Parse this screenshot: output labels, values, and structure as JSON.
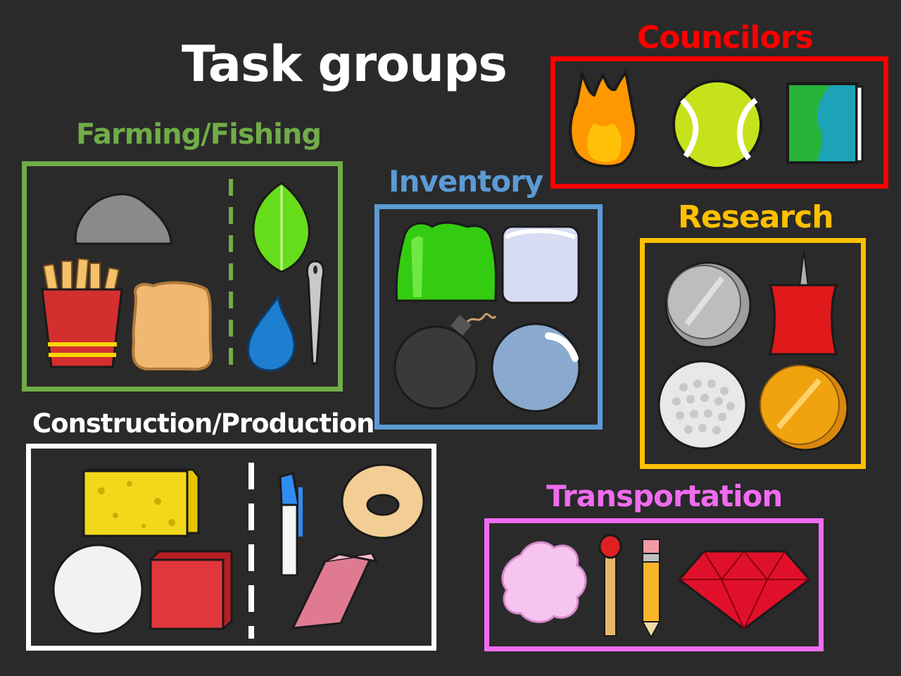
{
  "main_title": "Task groups",
  "groups": {
    "councilors": {
      "label": "Councilors",
      "color": "#ff0000"
    },
    "farming": {
      "label": "Farming/Fishing",
      "color": "#70ad47"
    },
    "inventory": {
      "label": "Inventory",
      "color": "#5b9bd5"
    },
    "research": {
      "label": "Research",
      "color": "#ffc000"
    },
    "construction": {
      "label": "Construction/Production",
      "color": "#ffffff"
    },
    "transportation": {
      "label": "Transportation",
      "color": "#f06cf0"
    }
  },
  "icons": {
    "councilors": [
      "fire-icon",
      "tennis-ball-icon",
      "book-icon"
    ],
    "farming": [
      "rock-icon",
      "fries-icon",
      "bread-icon",
      "leaf-icon",
      "water-drop-icon",
      "needle-icon"
    ],
    "inventory": [
      "gelatin-icon",
      "ice-cube-icon",
      "bomb-icon",
      "bubble-icon"
    ],
    "research": [
      "nickel-icon",
      "pushpin-icon",
      "golf-ball-icon",
      "coin-icon"
    ],
    "construction": [
      "sponge-icon",
      "donut-icon",
      "snowball-icon",
      "block-icon",
      "pen-icon",
      "eraser-icon"
    ],
    "transportation": [
      "puffball-icon",
      "match-icon",
      "pencil-icon",
      "ruby-icon"
    ]
  }
}
